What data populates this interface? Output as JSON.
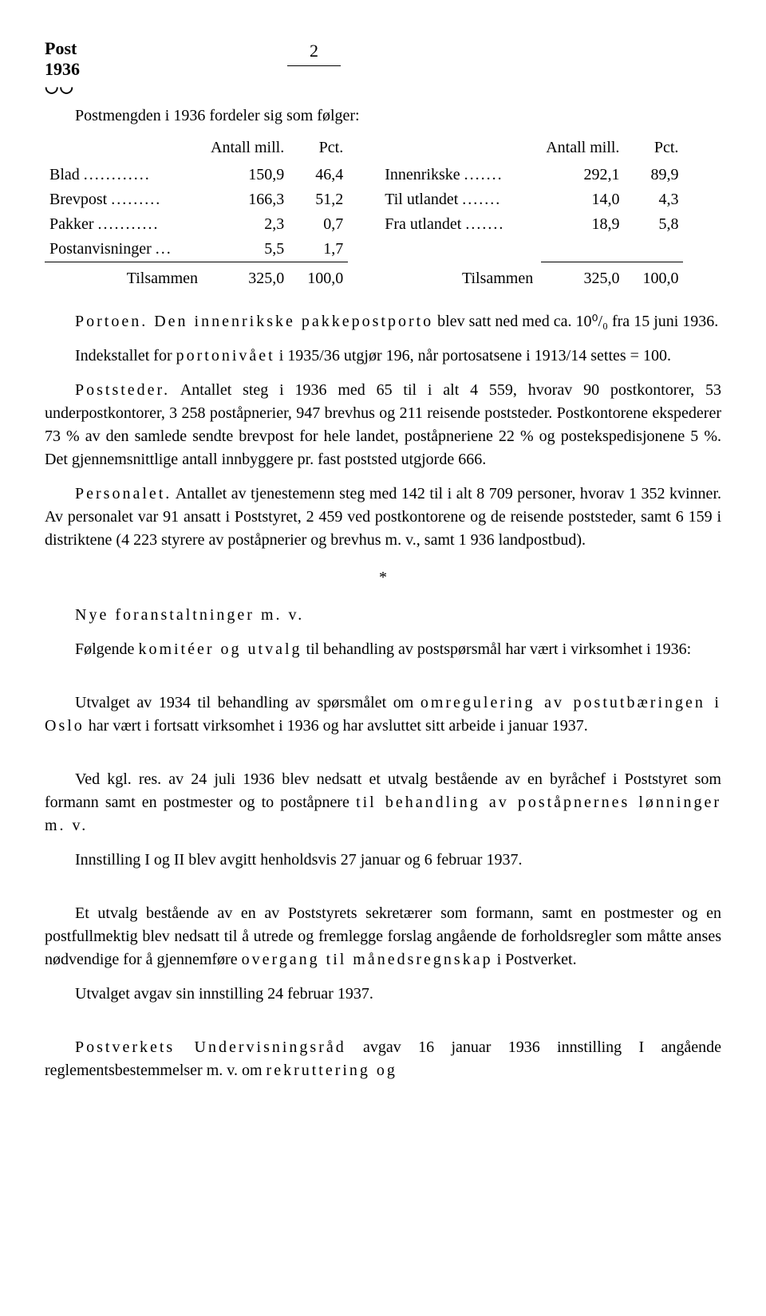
{
  "header": {
    "title_line1": "Post",
    "title_line2": "1936",
    "arc": "◡◡",
    "page_number": "2"
  },
  "intro": "Postmengden i 1936 fordeler sig som følger:",
  "table_headers": {
    "col1": "Antall mill.",
    "col2": "Pct."
  },
  "left_table": {
    "rows": [
      {
        "label": "Blad",
        "dots": "............",
        "val": "150,9",
        "pct": "46,4"
      },
      {
        "label": "Brevpost",
        "dots": ".........",
        "val": "166,3",
        "pct": "51,2"
      },
      {
        "label": "Pakker",
        "dots": "...........",
        "val": "2,3",
        "pct": "0,7"
      },
      {
        "label": "Postanvisninger",
        "dots": "...",
        "val": "5,5",
        "pct": "1,7"
      }
    ],
    "sum": {
      "label": "Tilsammen",
      "val": "325,0",
      "pct": "100,0"
    }
  },
  "right_table": {
    "rows": [
      {
        "label": "Innenrikske",
        "dots": ".......",
        "val": "292,1",
        "pct": "89,9"
      },
      {
        "label": "Til utlandet",
        "dots": ".......",
        "val": "14,0",
        "pct": "4,3"
      },
      {
        "label": "Fra utlandet",
        "dots": ".......",
        "val": "18,9",
        "pct": "5,8"
      }
    ],
    "sum": {
      "label": "Tilsammen",
      "val": "325,0",
      "pct": "100,0"
    }
  },
  "paragraphs": {
    "p1a": "Portoen.  Den innenrikske pakkepostporto",
    "p1b": " blev satt ned med ca. 10⁰/₀ fra 15 juni 1936.",
    "p2a": "Indekstallet for ",
    "p2b": "portonivået",
    "p2c": " i 1935/36 utgjør 196, når portosatsene i 1913/14 settes = 100.",
    "p3a": "Poststeder.",
    "p3b": "  Antallet steg i 1936 med 65 til i alt 4 559, hvorav 90 postkontorer, 53 underpostkontorer, 3 258 poståpnerier, 947 brevhus og 211 reisende poststeder. Postkontorene ekspederer 73 % av den samlede sendte brevpost for hele landet, poståpneriene 22 % og postekspedisjonene 5 %. Det gjennemsnittlige antall innbyggere pr. fast poststed utgjorde 666.",
    "p4a": "Personalet.",
    "p4b": "  Antallet av tjenestemenn steg med 142 til i alt 8 709 personer, hvorav 1 352 kvinner. Av personalet var 91 ansatt i Poststyret, 2 459 ved postkontorene og de reisende poststeder, samt 6 159 i distriktene (4 223 styrere av poståpnerier og brevhus m. v., samt 1 936 landpostbud).",
    "star": "*",
    "p5a": "Nye foranstaltninger m. v.",
    "p6a": "Følgende ",
    "p6b": "komitéer og utvalg",
    "p6c": " til behandling av postspørsmål har vært i virksomhet i 1936:",
    "p7a": "Utvalget av 1934 til behandling av spørsmålet om ",
    "p7b": "omregulering av postutbæringen i Oslo",
    "p7c": " har vært i fortsatt virksomhet i 1936 og har avsluttet sitt arbeide i januar 1937.",
    "p8a": "Ved kgl. res. av 24 juli 1936 blev nedsatt et utvalg bestående av en byråchef i Poststyret som formann samt en postmester og to poståpnere ",
    "p8b": "til behandling av poståpnernes lønninger m. v.",
    "p9": "Innstilling I og II blev avgitt henholdsvis 27 januar og 6 februar 1937.",
    "p10a": "Et utvalg bestående av en av Poststyrets sekretærer som formann, samt en postmester og en postfullmektig blev nedsatt til å utrede og fremlegge forslag angående de forholdsregler som måtte anses nødvendige for å gjennemføre ",
    "p10b": "overgang til månedsregnskap",
    "p10c": " i Postverket.",
    "p11": "Utvalget avgav sin innstilling 24 februar 1937.",
    "p12a": "Postverkets Undervisningsråd",
    "p12b": " avgav 16 januar 1936 innstilling I angående reglementsbestemmelser m. v. om ",
    "p12c": "rekruttering og"
  }
}
